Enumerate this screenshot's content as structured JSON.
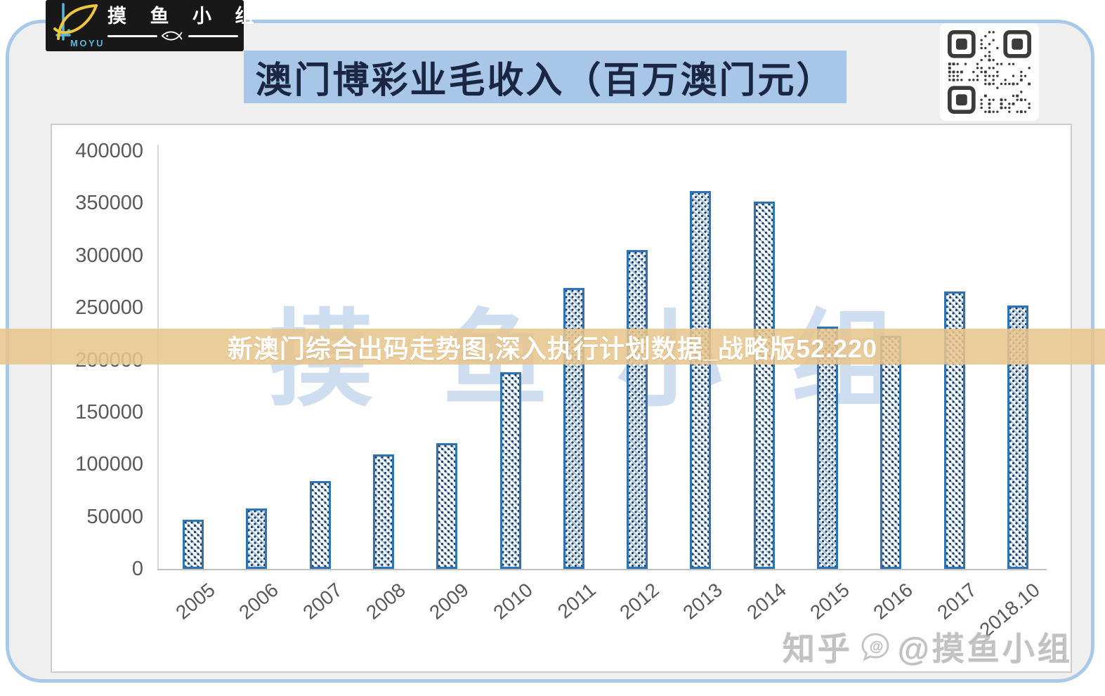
{
  "logo": {
    "brand": "MOYU",
    "group_name": "摸 鱼 小 组"
  },
  "overlay_banner": {
    "text": "新澳门综合出码走势图,深入执行计划数据_战略版52.220",
    "bg_color": "#e8c48c",
    "text_color": "#ffffff"
  },
  "watermarks": {
    "chart_background_text": "摸鱼小组",
    "zhihu_site": "知乎",
    "zhihu_handle": "@摸鱼小组"
  },
  "colors": {
    "title_bg": "#a8c7e8",
    "title_text": "#1b2742",
    "card_border": "#a9c9e8",
    "card_bg": "#efefef",
    "bar_border": "#2e74b5",
    "bar_hatch": "#9dc3e6",
    "bar_dot": "#1f3864",
    "axis_label": "#595959"
  },
  "chart_data": {
    "type": "bar",
    "title": "澳门博彩业毛收入（百万澳门元）",
    "categories": [
      "2005",
      "2006",
      "2007",
      "2008",
      "2009",
      "2010",
      "2011",
      "2012",
      "2013",
      "2014",
      "2015",
      "2016",
      "2017",
      "2018.10"
    ],
    "values": [
      47134,
      57521,
      83847,
      109826,
      120383,
      188343,
      269058,
      305235,
      361866,
      351521,
      231811,
      223210,
      265743,
      251971
    ],
    "xlabel": "",
    "ylabel": "",
    "ylim": [
      0,
      400000
    ],
    "ytick_step": 50000,
    "yticks": [
      0,
      50000,
      100000,
      150000,
      200000,
      250000,
      300000,
      350000,
      400000
    ],
    "grid": false,
    "legend": null,
    "bar_fill_style": "white with blue diagonal hatch and dots",
    "x_tick_rotation_deg": -40
  }
}
